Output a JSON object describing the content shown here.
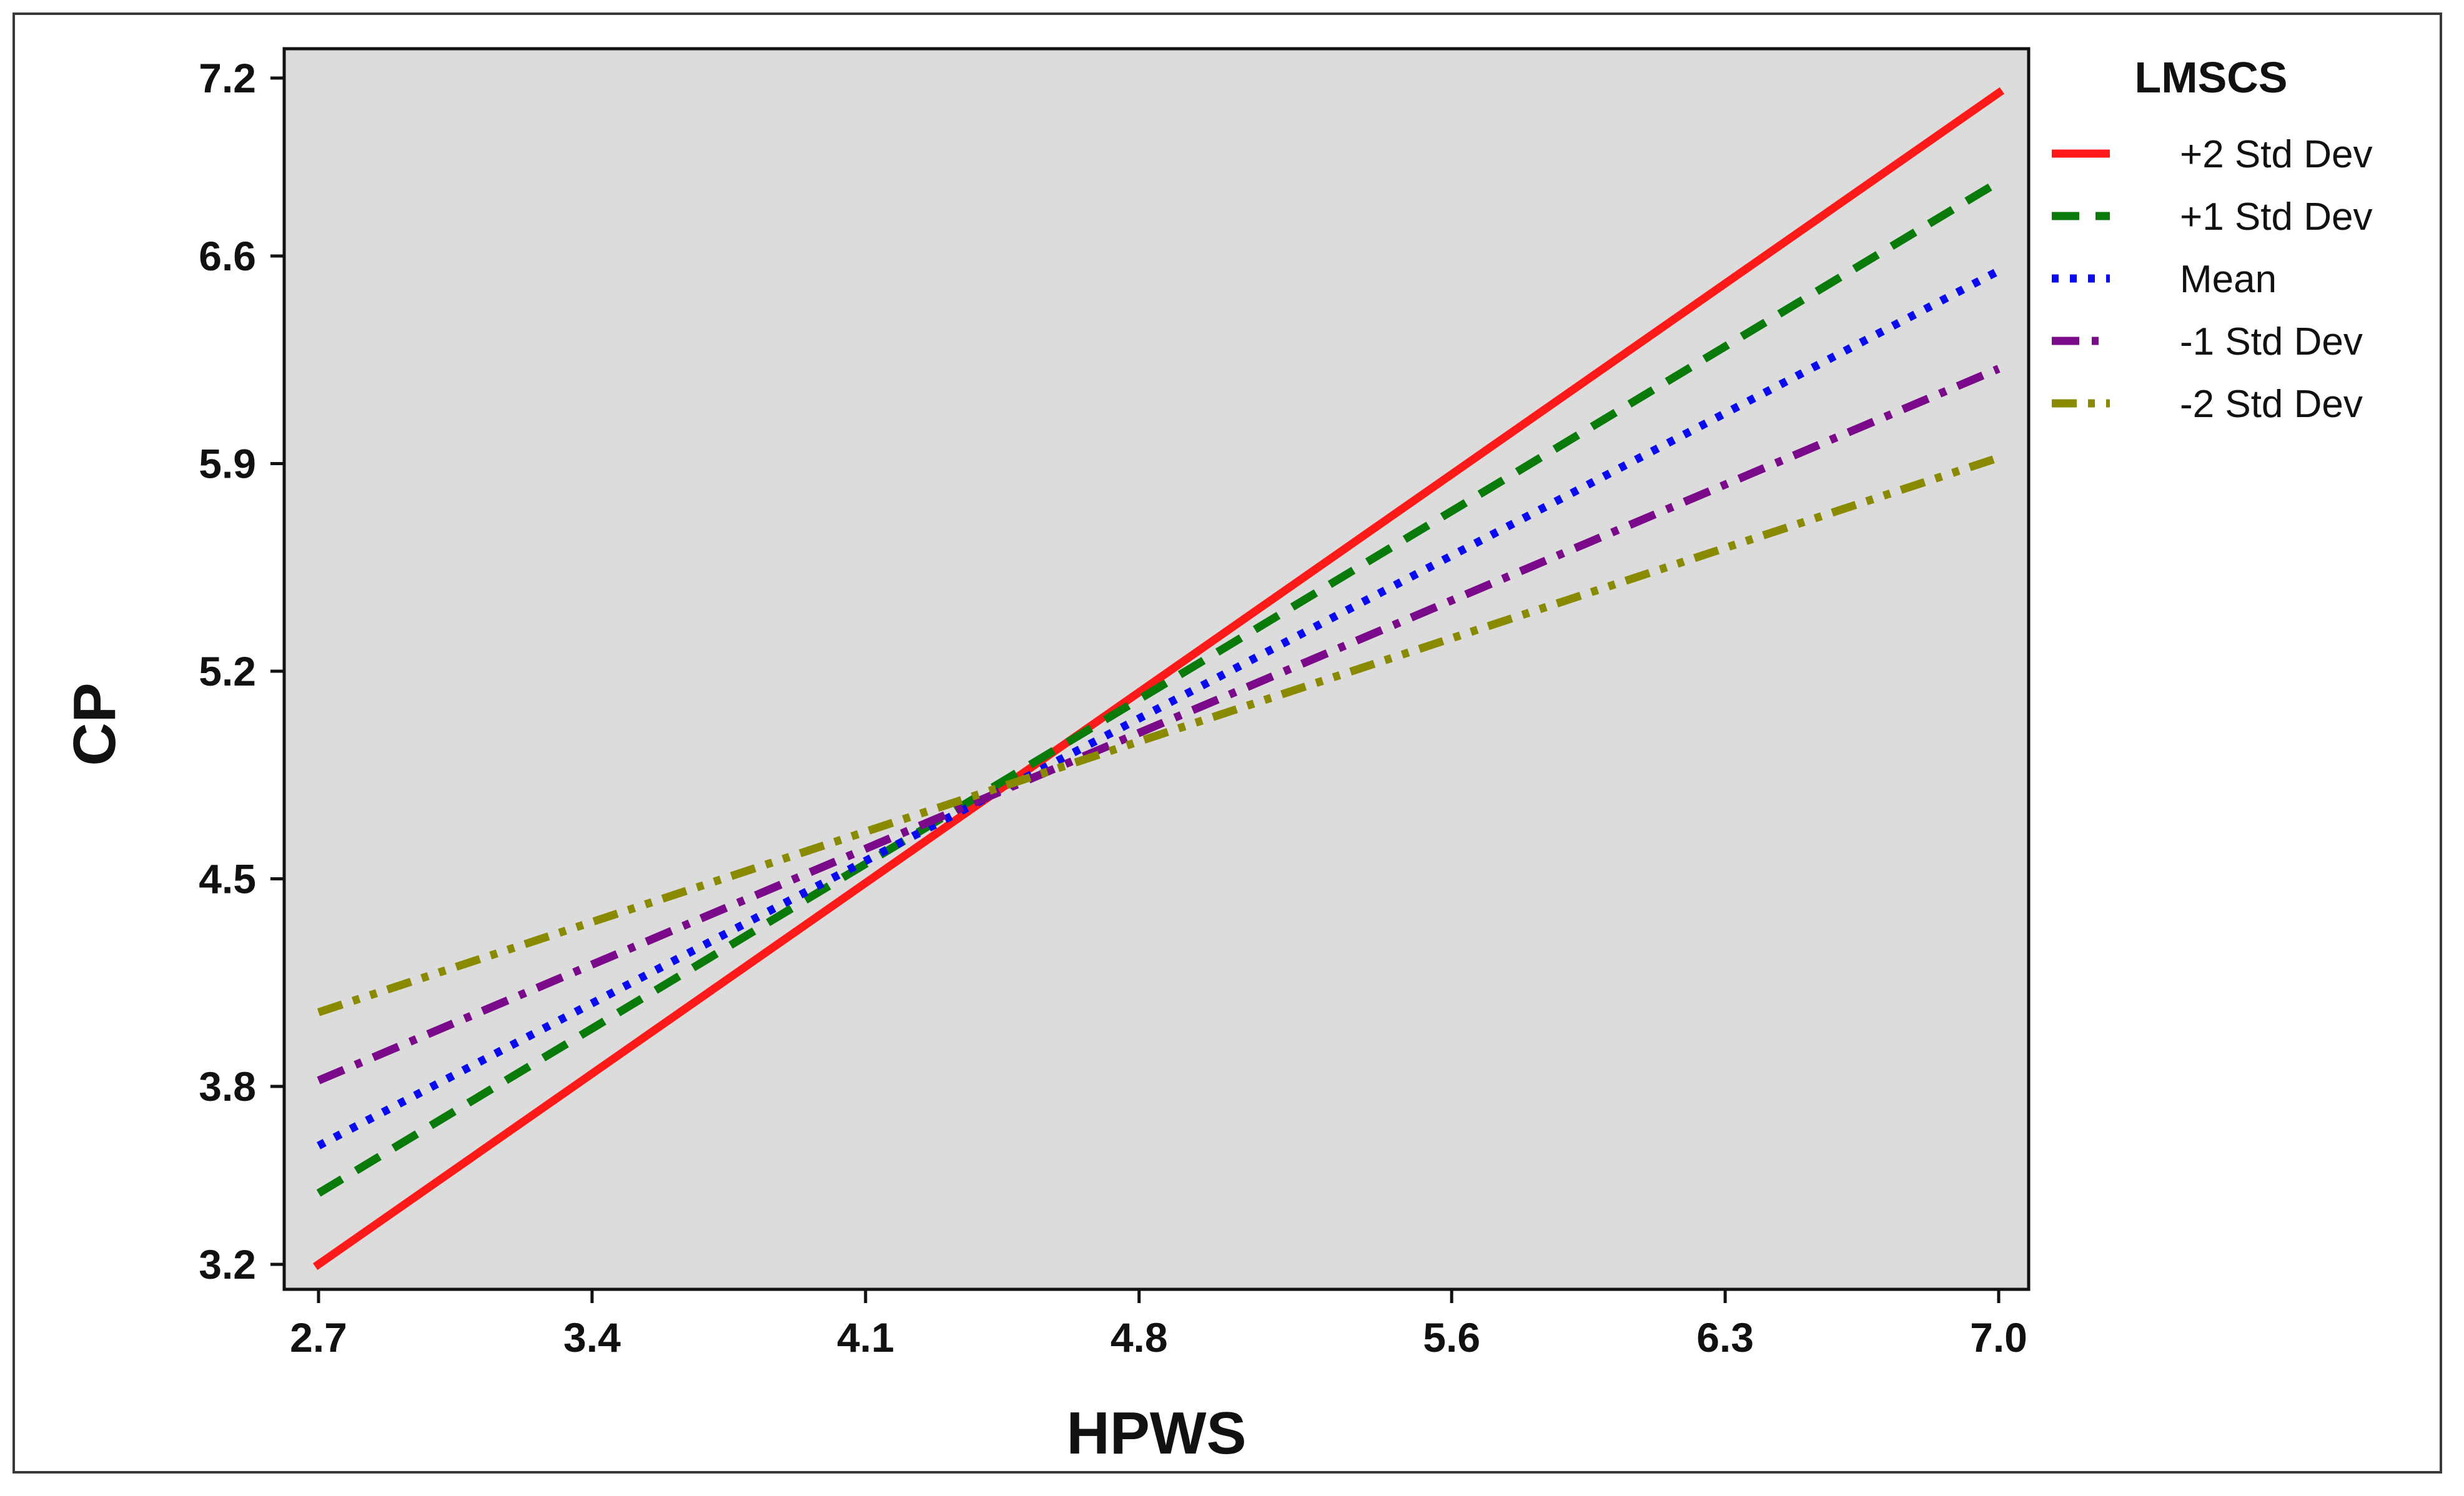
{
  "chart_data": {
    "type": "line",
    "xlabel": "HPWS",
    "ylabel": "CP",
    "xlim": [
      2.7,
      7.0
    ],
    "ylim": [
      3.2,
      7.2
    ],
    "x_ticks": [
      "2.7",
      "3.4",
      "4.1",
      "4.8",
      "5.6",
      "6.3",
      "7.0"
    ],
    "y_ticks": [
      "3.2",
      "3.8",
      "4.5",
      "5.2",
      "5.9",
      "6.6",
      "7.2"
    ],
    "legend_title": "LMSCS",
    "legend_position": "right",
    "background": "#dcdcdc",
    "series": [
      {
        "name": "+2 Std Dev",
        "color": "#ff1a1a",
        "dash": "solid",
        "x": [
          2.7,
          7.0
        ],
        "y": [
          3.2,
          7.15
        ]
      },
      {
        "name": "+1 Std Dev",
        "color": "#0a7a0a",
        "dash": "dash",
        "x": [
          2.7,
          7.0
        ],
        "y": [
          3.44,
          6.85
        ]
      },
      {
        "name": "Mean",
        "color": "#0a0af0",
        "dash": "dot",
        "x": [
          2.7,
          7.0
        ],
        "y": [
          3.6,
          6.55
        ]
      },
      {
        "name": "-1 Std Dev",
        "color": "#7a0a8a",
        "dash": "dashdot",
        "x": [
          2.7,
          7.0
        ],
        "y": [
          3.82,
          6.22
        ]
      },
      {
        "name": "-2 Std Dev",
        "color": "#8a8a00",
        "dash": "dashdotdot",
        "x": [
          2.7,
          7.0
        ],
        "y": [
          4.05,
          5.92
        ]
      }
    ]
  }
}
